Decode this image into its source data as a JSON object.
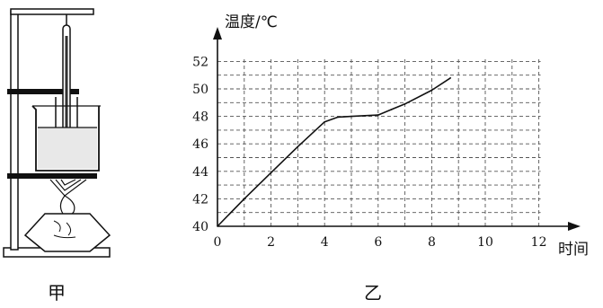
{
  "figure": {
    "left_caption": "甲",
    "right_caption": "乙"
  },
  "colors": {
    "ink": "#111111",
    "grid": "#555555",
    "flame_core": "#d40000"
  },
  "chart_data": {
    "type": "line",
    "title": "",
    "xlabel": "时间",
    "ylabel": "温度/℃",
    "xlim": [
      0,
      12
    ],
    "ylim": [
      40,
      52
    ],
    "x_ticks": [
      0,
      2,
      4,
      6,
      8,
      10,
      12
    ],
    "y_ticks": [
      40,
      42,
      44,
      46,
      48,
      50,
      52
    ],
    "grid": true,
    "grid_style": "dashed",
    "series": [
      {
        "points": [
          [
            0,
            40
          ],
          [
            1,
            42
          ],
          [
            2,
            43.9
          ],
          [
            3,
            45.8
          ],
          [
            4,
            47.6
          ],
          [
            4.5,
            47.95
          ],
          [
            5,
            48.0
          ],
          [
            6,
            48.1
          ],
          [
            6.5,
            48.5
          ],
          [
            7,
            48.9
          ],
          [
            8,
            49.9
          ],
          [
            8.7,
            50.8
          ]
        ]
      }
    ]
  }
}
